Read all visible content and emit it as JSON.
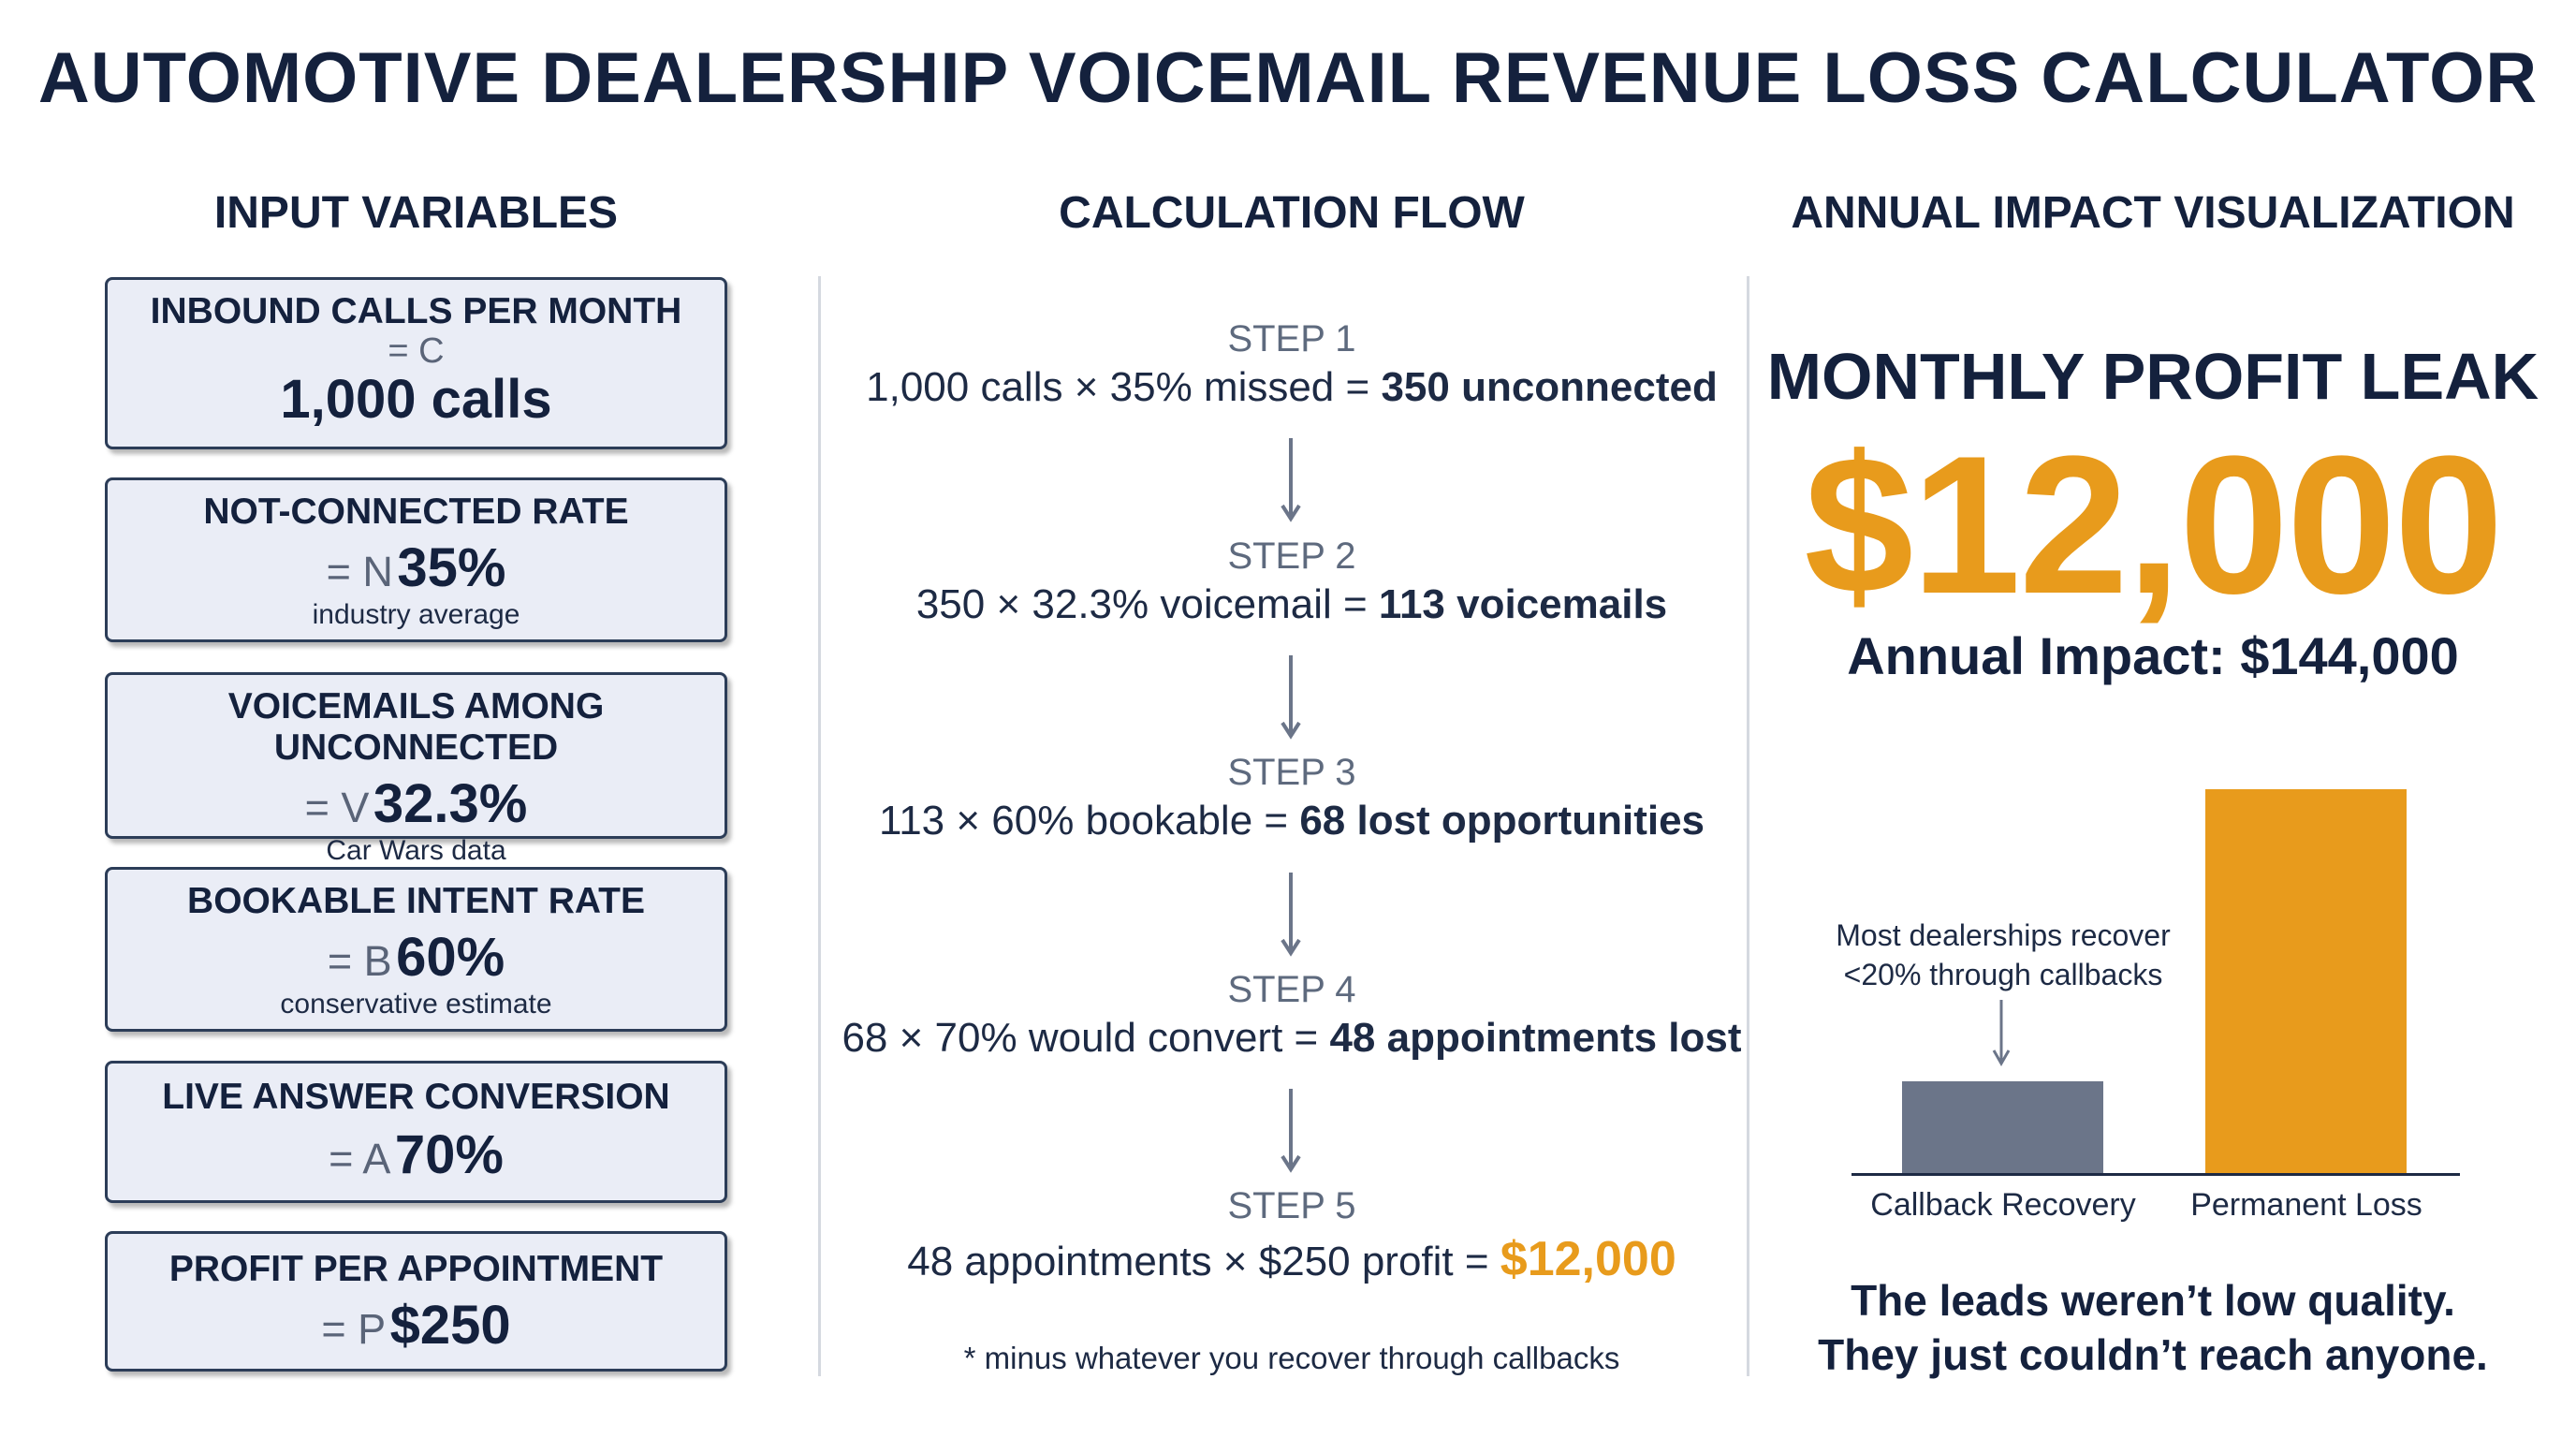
{
  "title": "AUTOMOTIVE DEALERSHIP VOICEMAIL REVENUE LOSS CALCULATOR",
  "columns": {
    "inputs": "INPUT VARIABLES",
    "flow": "CALCULATION FLOW",
    "impact": "ANNUAL IMPACT VISUALIZATION"
  },
  "inputs": [
    {
      "label": "INBOUND CALLS PER MONTH",
      "symbol": "= C",
      "value": "1,000 calls",
      "note": ""
    },
    {
      "label": "NOT-CONNECTED RATE",
      "symbol": "= N",
      "value": "35%",
      "note": "industry average"
    },
    {
      "label": "VOICEMAILS AMONG UNCONNECTED",
      "symbol": "= V",
      "value": "32.3%",
      "note": "Car Wars data"
    },
    {
      "label": "BOOKABLE INTENT RATE",
      "symbol": "= B",
      "value": "60%",
      "note": "conservative estimate"
    },
    {
      "label": "LIVE ANSWER CONVERSION",
      "symbol": "= A",
      "value": "70%",
      "note": ""
    },
    {
      "label": "PROFIT PER APPOINTMENT",
      "symbol": "= P",
      "value": "$250",
      "note": ""
    }
  ],
  "steps": [
    {
      "label": "STEP 1",
      "formula": "1,000 calls × 35% missed = ",
      "result": "350 unconnected"
    },
    {
      "label": "STEP 2",
      "formula": "350 × 32.3% voicemail = ",
      "result": "113 voicemails"
    },
    {
      "label": "STEP 3",
      "formula": "113 × 60% bookable = ",
      "result": "68 lost opportunities"
    },
    {
      "label": "STEP 4",
      "formula": "68 × 70% would convert = ",
      "result": "48 appointments lost"
    },
    {
      "label": "STEP 5",
      "formula": "48 appointments × $250 profit = ",
      "result": "$12,000"
    }
  ],
  "footnote": "* minus whatever you recover through callbacks",
  "impact": {
    "label": "MONTHLY PROFIT LEAK",
    "value": "$12,000",
    "annual": "Annual Impact: $144,000",
    "annotation_line1": "Most dealerships recover",
    "annotation_line2": "<20% through callbacks",
    "tagline_line1": "The leads weren’t low quality.",
    "tagline_line2": "They just couldn’t reach anyone.",
    "bars": [
      {
        "label": "Callback Recovery",
        "share": 0.24,
        "color": "#6b7589"
      },
      {
        "label": "Permanent Loss",
        "share": 1.0,
        "color": "#e89b1c"
      }
    ]
  },
  "colors": {
    "navy": "#14213d",
    "accent": "#e89b1c",
    "card_bg": "#eaedf6",
    "muted": "#6b7589"
  }
}
